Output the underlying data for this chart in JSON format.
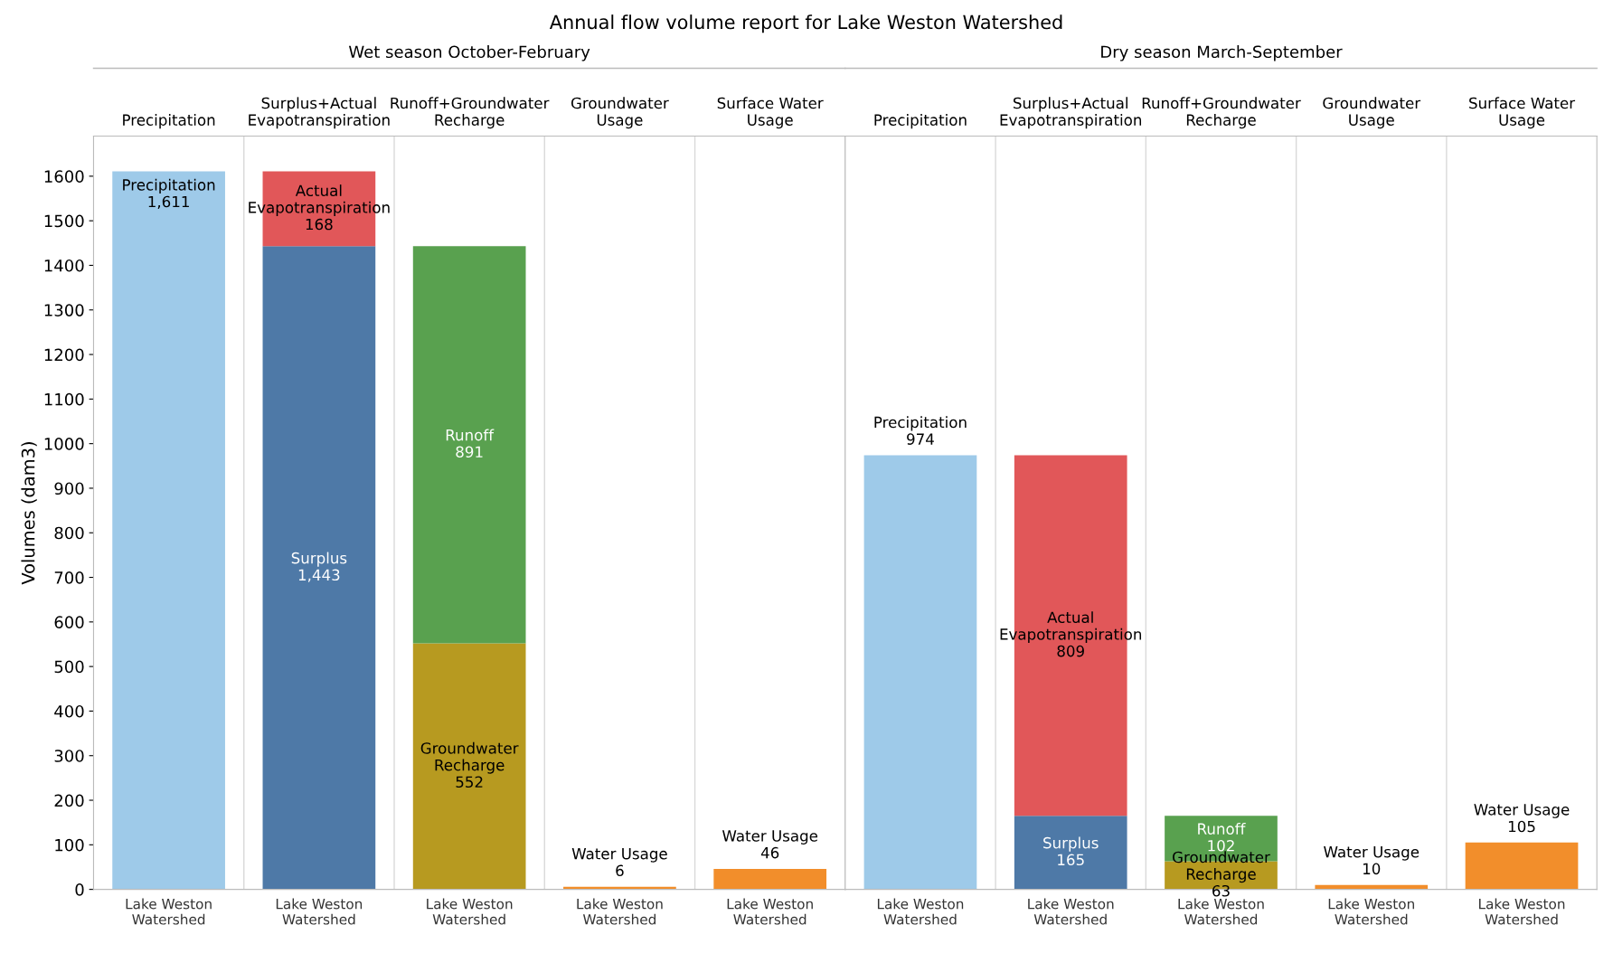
{
  "chart_data": [
    {
      "type": "bar",
      "title": "Annual flow volume report for Lake Weston Watershed",
      "subtitle": "Wet season October-February",
      "ylabel": "Volumes (dam3)",
      "stacked": true,
      "categories": [
        "Precipitation",
        "Surplus+Actual Evapotranspiration",
        "Runoff+Groundwater Recharge",
        "Groundwater Usage",
        "Surface Water Usage"
      ],
      "series": [
        {
          "name": "Precipitation",
          "color": "#9ecae9",
          "values": [
            1611,
            null,
            null,
            null,
            null
          ],
          "value_labels": [
            "1,611",
            null,
            null,
            null,
            null
          ]
        },
        {
          "name": "Surplus",
          "color": "#4e79a7",
          "values": [
            null,
            1443,
            null,
            null,
            null
          ],
          "value_labels": [
            null,
            "1,443",
            null,
            null,
            null
          ]
        },
        {
          "name": "Actual Evapotranspiration",
          "color": "#e15759",
          "values": [
            null,
            168,
            null,
            null,
            null
          ],
          "value_labels": [
            null,
            "168",
            null,
            null,
            null
          ]
        },
        {
          "name": "Groundwater Recharge",
          "color": "#b79a20",
          "values": [
            null,
            null,
            552,
            null,
            null
          ],
          "value_labels": [
            null,
            null,
            "552",
            null,
            null
          ]
        },
        {
          "name": "Runoff",
          "color": "#59a14f",
          "values": [
            null,
            null,
            891,
            null,
            null
          ],
          "value_labels": [
            null,
            null,
            "891",
            null,
            null
          ]
        },
        {
          "name": "Water Usage",
          "color": "#f28e2b",
          "values": [
            null,
            null,
            null,
            6,
            46
          ],
          "value_labels": [
            null,
            null,
            null,
            "6",
            "46"
          ]
        }
      ],
      "ylim": [
        0,
        1690
      ],
      "yticks": [
        0,
        100,
        200,
        300,
        400,
        500,
        600,
        700,
        800,
        900,
        1000,
        1100,
        1200,
        1300,
        1400,
        1500,
        1600
      ],
      "annotations": [
        "Lake Weston Watershed",
        "Lake Weston Watershed",
        "Lake Weston Watershed",
        "Lake Weston Watershed",
        "Lake Weston Watershed"
      ],
      "grid": false,
      "legend": false
    },
    {
      "type": "bar",
      "subtitle": "Dry season March-September",
      "stacked": true,
      "tick_labels": "x",
      "categories": [
        "Precipitation",
        "Surplus+Actual Evapotranspiration",
        "Runoff+Groundwater Recharge",
        "Groundwater Usage",
        "Surface Water Usage"
      ],
      "series": [
        {
          "name": "Precipitation",
          "color": "#9ecae9",
          "values": [
            974,
            null,
            null,
            null,
            null
          ],
          "value_labels": [
            "974",
            null,
            null,
            null,
            null
          ]
        },
        {
          "name": "Surplus",
          "color": "#4e79a7",
          "values": [
            null,
            165,
            null,
            null,
            null
          ],
          "value_labels": [
            null,
            "165",
            null,
            null,
            null
          ]
        },
        {
          "name": "Actual Evapotranspiration",
          "color": "#e15759",
          "values": [
            null,
            809,
            null,
            null,
            null
          ],
          "value_labels": [
            null,
            "809",
            null,
            null,
            null
          ]
        },
        {
          "name": "Groundwater Recharge",
          "color": "#b79a20",
          "values": [
            null,
            null,
            63,
            null,
            null
          ],
          "value_labels": [
            null,
            null,
            "63",
            null,
            null
          ]
        },
        {
          "name": "Runoff",
          "color": "#59a14f",
          "values": [
            null,
            null,
            102,
            null,
            null
          ],
          "value_labels": [
            null,
            null,
            "102",
            null,
            null
          ]
        },
        {
          "name": "Water Usage",
          "color": "#f28e2b",
          "values": [
            null,
            null,
            null,
            10,
            105
          ],
          "value_labels": [
            null,
            null,
            null,
            "10",
            "105"
          ]
        }
      ],
      "ylim": [
        0,
        1690
      ],
      "yticks": [
        0,
        100,
        200,
        300,
        400,
        500,
        600,
        700,
        800,
        900,
        1000,
        1100,
        1200,
        1300,
        1400,
        1500,
        1600
      ],
      "annotations": [
        "Lake Weston Watershed",
        "Lake Weston Watershed",
        "Lake Weston Watershed",
        "Lake Weston Watershed",
        "Lake Weston Watershed"
      ],
      "grid": false,
      "legend": false
    }
  ]
}
